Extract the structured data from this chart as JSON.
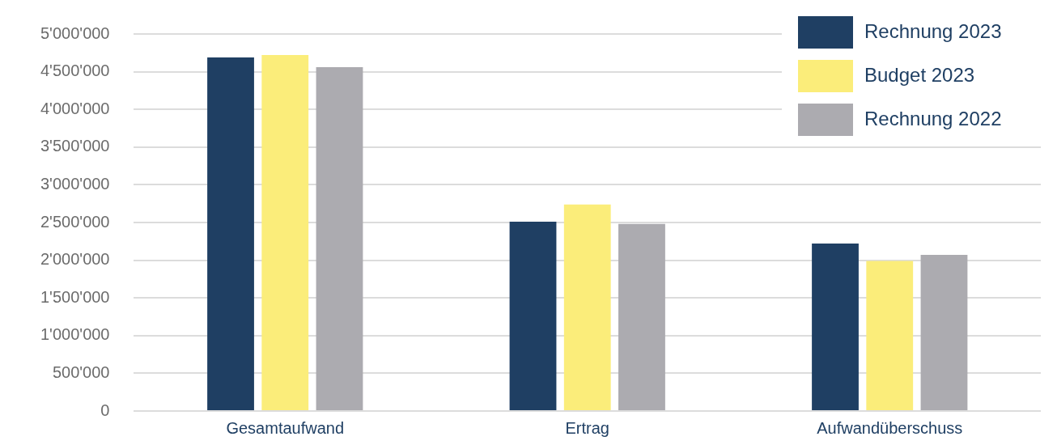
{
  "chart_data": {
    "type": "bar",
    "categories": [
      "Gesamtaufwand",
      "Ertrag",
      "Aufwandüberschuss"
    ],
    "series": [
      {
        "name": "Rechnung 2023",
        "color": "#1f3f63",
        "values": [
          4690000,
          2510000,
          2220000
        ]
      },
      {
        "name": "Budget 2023",
        "color": "#fbed7a",
        "values": [
          4720000,
          2740000,
          1990000
        ]
      },
      {
        "name": "Rechnung 2022",
        "color": "#acabb0",
        "values": [
          4560000,
          2480000,
          2070000
        ]
      }
    ],
    "ylim": [
      0,
      5000000
    ],
    "yticks": [
      {
        "value": 0,
        "label": "0"
      },
      {
        "value": 500000,
        "label": "500'000"
      },
      {
        "value": 1000000,
        "label": "1'000'000"
      },
      {
        "value": 1500000,
        "label": "1'500'000"
      },
      {
        "value": 2000000,
        "label": "2'000'000"
      },
      {
        "value": 2500000,
        "label": "2'500'000"
      },
      {
        "value": 3000000,
        "label": "3'000'000"
      },
      {
        "value": 3500000,
        "label": "3'500'000"
      },
      {
        "value": 4000000,
        "label": "4'000'000"
      },
      {
        "value": 4500000,
        "label": "4'500'000"
      },
      {
        "value": 5000000,
        "label": "5'000'000"
      }
    ],
    "grid": "y",
    "legend": "top right"
  }
}
